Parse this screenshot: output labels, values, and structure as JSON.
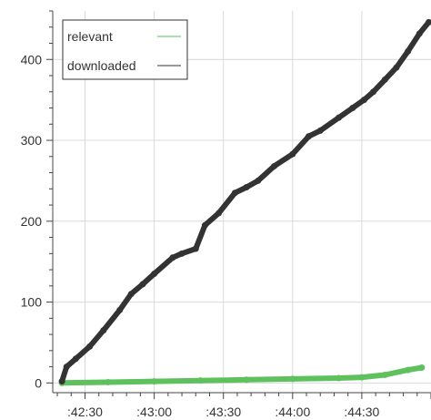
{
  "chart_data": {
    "type": "line",
    "title": "",
    "xlabel": "",
    "ylabel": "",
    "x_unit": "time (minute:second)",
    "xlim": [
      ":42:16",
      ":45:00"
    ],
    "ylim": [
      -12,
      460
    ],
    "x_ticks": [
      ":42:30",
      ":43:00",
      ":43:30",
      ":44:00",
      ":44:30"
    ],
    "y_ticks": [
      0,
      100,
      200,
      300,
      400
    ],
    "grid": true,
    "legend": {
      "placement": "top-left",
      "entries": [
        "relevant",
        "downloaded"
      ]
    },
    "series": [
      {
        "name": "relevant",
        "color": "#5ec15e",
        "x": [
          ":42:20",
          ":42:40",
          ":43:00",
          ":43:20",
          ":43:40",
          ":44:00",
          ":44:20",
          ":44:30",
          ":44:40",
          ":44:50",
          ":44:56"
        ],
        "values": [
          0,
          1,
          2,
          3,
          4,
          5,
          6,
          7,
          10,
          16,
          19
        ]
      },
      {
        "name": "downloaded",
        "color": "#333333",
        "x": [
          ":42:20",
          ":42:22",
          ":42:26",
          ":42:32",
          ":42:38",
          ":42:45",
          ":42:50",
          ":42:55",
          ":43:00",
          ":43:08",
          ":43:12",
          ":43:18",
          ":43:22",
          ":43:28",
          ":43:35",
          ":43:40",
          ":43:45",
          ":43:52",
          ":44:00",
          ":44:07",
          ":44:12",
          ":44:20",
          ":44:26",
          ":44:31",
          ":44:35",
          ":44:40",
          ":44:45",
          ":44:50",
          ":44:55",
          ":44:59"
        ],
        "values": [
          2,
          20,
          30,
          45,
          65,
          90,
          110,
          122,
          135,
          155,
          160,
          166,
          195,
          210,
          235,
          242,
          250,
          268,
          283,
          305,
          312,
          328,
          340,
          350,
          360,
          375,
          390,
          410,
          432,
          446
        ]
      }
    ]
  }
}
